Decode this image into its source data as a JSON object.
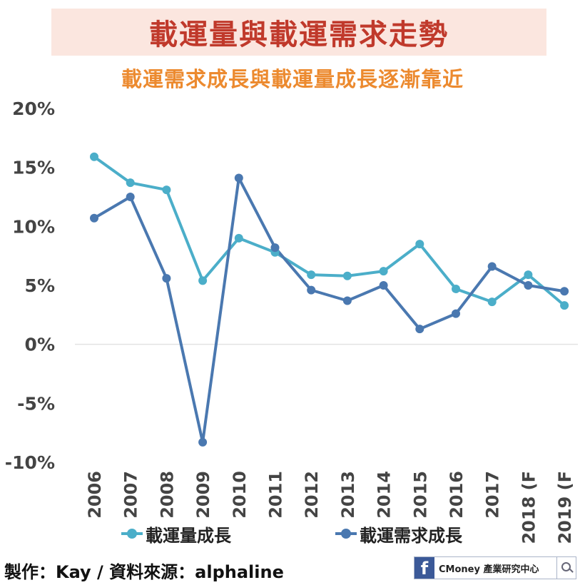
{
  "header": {
    "title": "載運量與載運需求走勢",
    "subtitle": "載運需求成長與載運量成長逐漸靠近"
  },
  "chart_data": {
    "type": "line",
    "categories": [
      "2006",
      "2007",
      "2008",
      "2009",
      "2010",
      "2011",
      "2012",
      "2013",
      "2014",
      "2015",
      "2016",
      "2017",
      "2018 (F",
      "2019 (F"
    ],
    "y_ticks": [
      "20%",
      "15%",
      "10%",
      "5%",
      "0%",
      "-5%",
      "-10%"
    ],
    "ylim": [
      -10,
      20
    ],
    "grid": false,
    "legend_position": "bottom",
    "series": [
      {
        "name": "載運量成長",
        "color": "#4baec9",
        "values": [
          15.9,
          13.7,
          13.1,
          5.4,
          9.0,
          7.8,
          5.9,
          5.8,
          6.2,
          8.5,
          4.7,
          3.6,
          5.9,
          3.3
        ]
      },
      {
        "name": "載運需求成長",
        "color": "#4a78b0",
        "values": [
          10.7,
          12.5,
          5.6,
          -8.3,
          14.1,
          8.2,
          4.6,
          3.7,
          5.0,
          1.3,
          2.6,
          6.6,
          5.0,
          4.5
        ]
      }
    ]
  },
  "footer": {
    "credit": "製作：Kay / 資料來源：alphaline",
    "brand_icon_letter": "f",
    "brand_text": "CMoney 產業研究中心"
  }
}
